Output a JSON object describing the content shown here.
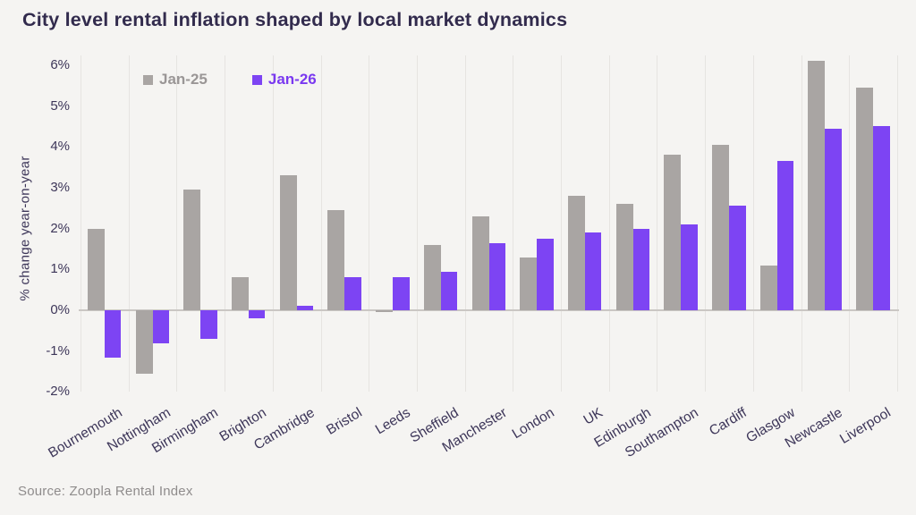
{
  "title": "City level rental inflation shaped by local market dynamics",
  "source": "Source: Zoopla Rental Index",
  "colors": {
    "background": "#f5f4f2",
    "title_text": "#322b4d",
    "axis_text": "#3d3659",
    "gridline": "#e6e4e1",
    "zero_line": "#cac7c4",
    "jan25_bar": "#a9a5a3",
    "jan26_bar": "#7d44f3",
    "jan25_legend_text": "#9a9696",
    "jan26_legend_text": "#7a39f0",
    "source_text": "#8f8c8c"
  },
  "chart_data": {
    "type": "bar",
    "title": "City level rental inflation shaped by local market dynamics",
    "xlabel": "",
    "ylabel": "% change year-on-year",
    "ylim": [
      -2,
      6
    ],
    "yticks": [
      6,
      5,
      4,
      3,
      2,
      1,
      0,
      -1,
      -2
    ],
    "ytick_labels": [
      "6%",
      "5%",
      "4%",
      "3%",
      "2%",
      "1%",
      "0%",
      "-1%",
      "-2%"
    ],
    "grid": "vertical-category-separators",
    "legend_position": "top-inside",
    "categories": [
      "Bournemouth",
      "Nottingham",
      "Birmingham",
      "Brighton",
      "Cambridge",
      "Bristol",
      "Leeds",
      "Sheffield",
      "Manchester",
      "London",
      "UK",
      "Edinburgh",
      "Southampton",
      "Cardiff",
      "Glasgow",
      "Newcastle",
      "Liverpool"
    ],
    "series": [
      {
        "name": "Jan-25",
        "color": "#a9a5a3",
        "values": [
          2.0,
          -1.55,
          2.95,
          0.8,
          3.3,
          2.45,
          -0.05,
          1.6,
          2.3,
          1.3,
          2.8,
          2.6,
          3.8,
          4.05,
          1.1,
          6.1,
          5.45
        ]
      },
      {
        "name": "Jan-26",
        "color": "#7d44f3",
        "values": [
          -1.15,
          -0.8,
          -0.7,
          -0.2,
          0.1,
          0.8,
          0.8,
          0.95,
          1.65,
          1.75,
          1.9,
          2.0,
          2.1,
          2.55,
          3.65,
          4.45,
          4.5
        ]
      }
    ]
  }
}
